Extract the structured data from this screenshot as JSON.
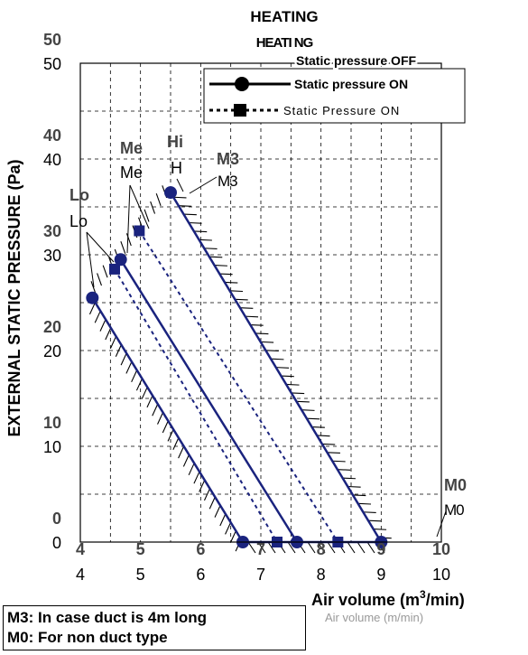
{
  "chart_data": {
    "type": "line",
    "title_bold": "HEATING",
    "title": "HEATI NG",
    "xlabel_prefix": "Air volume (m",
    "xlabel_sup": "3",
    "xlabel_suffix": "/min)",
    "xlabel_ghost": "Air  volume  (m/min)",
    "ylabel": "EXTERNAL STATIC PRESSURE (Pa)",
    "xlim": [
      4,
      10
    ],
    "ylim": [
      0,
      50
    ],
    "grid": true,
    "legend_position": "top-right",
    "x_ticks": [
      "4",
      "5",
      "6",
      "7",
      "8",
      "9",
      "10"
    ],
    "y_ticks": [
      "0",
      "10",
      "20",
      "30",
      "40",
      "50"
    ],
    "y_ticks_bold": [
      "0",
      "10",
      "20",
      "30",
      "40",
      "50"
    ],
    "legend": {
      "header": "Static pressure OFF",
      "solid": "Static pressure ON",
      "dotted": "Static Pressure ON"
    },
    "series": [
      {
        "key": "lo_solid",
        "style": "solid",
        "marker": "circle",
        "x": [
          4.2,
          6.7
        ],
        "y": [
          25.5,
          0
        ]
      },
      {
        "key": "me_solid",
        "style": "solid",
        "marker": "circle",
        "x": [
          4.67,
          7.6
        ],
        "y": [
          29.5,
          0
        ]
      },
      {
        "key": "hi_solid",
        "style": "solid",
        "marker": "circle",
        "x": [
          5.5,
          9.0
        ],
        "y": [
          36.5,
          0
        ]
      },
      {
        "key": "lo_dotted",
        "style": "dotted",
        "marker": "square",
        "x": [
          4.57,
          7.27
        ],
        "y": [
          28.5,
          0
        ]
      },
      {
        "key": "me_dotted",
        "style": "dotted",
        "marker": "square",
        "x": [
          4.98,
          8.28
        ],
        "y": [
          32.5,
          0
        ]
      }
    ],
    "boundary": {
      "upper": {
        "x": [
          4.2,
          5.5,
          9.0
        ],
        "y": [
          25.5,
          36.5,
          0
        ]
      },
      "lower": {
        "x": [
          4.2,
          6.7,
          9.0
        ],
        "y": [
          25.5,
          0,
          0
        ]
      }
    },
    "annotations": {
      "lo_bold": "Lo",
      "lo": "Lo",
      "me_bold": "Me",
      "me": "Me",
      "hi_bold": "Hi",
      "hi": "H",
      "m3_bold": "M3",
      "m3": "M3",
      "m0_bold": "M0",
      "m0": "M0"
    }
  },
  "notes": [
    "M3: In case duct is 4m long",
    "M0: For non duct type"
  ]
}
